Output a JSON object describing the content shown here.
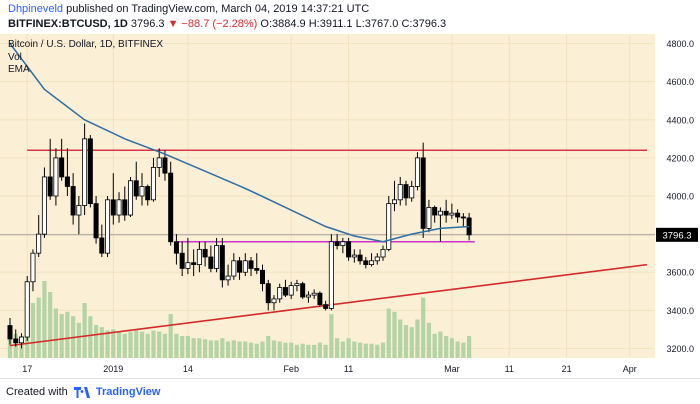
{
  "header": {
    "author": "Dhpineveld",
    "published_text": "published on TradingView.com, March 04, 2019 14:37:21 UTC",
    "symbol": "BITFINEX:BTCUSD, 1D",
    "last": "3796.3",
    "change": "▼ −88.7 (−2.28%)",
    "ohlc": "O:3884.9 H:3911.1 L:3767.0 C:3796.3"
  },
  "footer": {
    "credit_prefix": "Created with",
    "brand": "TradingView"
  },
  "colors": {
    "background": "#fbefd6",
    "grid": "#f1e2c0",
    "candle": "#000000",
    "ema": "#2e6ea6",
    "resistance": "#d9334a",
    "support": "#cc33cc",
    "trendline": "#d42a2a",
    "volume": "#a8cf9c"
  },
  "chart_data": {
    "type": "candlestick",
    "title": "Bitcoin / U.S. Dollar, 1D, BITFINEX",
    "legend": [
      "Vol",
      "EMA"
    ],
    "ylim": [
      3150,
      4850
    ],
    "y_ticks": [
      3200,
      3400,
      3600,
      3800,
      4000,
      4200,
      4400,
      4600,
      4800
    ],
    "y_tick_labels": [
      "3200.0",
      "3400.0",
      "3600.0",
      "3800.0",
      "4000.0",
      "4200.0",
      "4400.0",
      "4600.0",
      "4800.0"
    ],
    "last_price_label": "3796.3",
    "last_price": 3796.3,
    "x_range": [
      "2018-12-14",
      "2019-04-04"
    ],
    "x_ticks": [
      {
        "date": "2018-12-17",
        "label": "17"
      },
      {
        "date": "2019-01-01",
        "label": "2019"
      },
      {
        "date": "2019-01-14",
        "label": "14"
      },
      {
        "date": "2019-02-01",
        "label": "Feb"
      },
      {
        "date": "2019-02-11",
        "label": "11"
      },
      {
        "date": "2019-03-01",
        "label": "Mar"
      },
      {
        "date": "2019-03-11",
        "label": "11"
      },
      {
        "date": "2019-03-21",
        "label": "21"
      },
      {
        "date": "2019-04-01",
        "label": "Apr"
      }
    ],
    "candles": [
      {
        "date": "2018-12-14",
        "o": 3320,
        "h": 3360,
        "l": 3220,
        "c": 3250,
        "v": 0.3
      },
      {
        "date": "2018-12-15",
        "o": 3250,
        "h": 3300,
        "l": 3210,
        "c": 3230,
        "v": 0.22
      },
      {
        "date": "2018-12-16",
        "o": 3230,
        "h": 3280,
        "l": 3200,
        "c": 3260,
        "v": 0.2
      },
      {
        "date": "2018-12-17",
        "o": 3260,
        "h": 3580,
        "l": 3240,
        "c": 3550,
        "v": 0.45
      },
      {
        "date": "2018-12-18",
        "o": 3550,
        "h": 3720,
        "l": 3500,
        "c": 3700,
        "v": 0.5
      },
      {
        "date": "2018-12-19",
        "o": 3700,
        "h": 3900,
        "l": 3680,
        "c": 3800,
        "v": 0.55
      },
      {
        "date": "2018-12-20",
        "o": 3800,
        "h": 4150,
        "l": 3780,
        "c": 4100,
        "v": 0.7
      },
      {
        "date": "2018-12-21",
        "o": 4100,
        "h": 4300,
        "l": 3980,
        "c": 4000,
        "v": 0.6
      },
      {
        "date": "2018-12-22",
        "o": 4000,
        "h": 4250,
        "l": 3950,
        "c": 4200,
        "v": 0.45
      },
      {
        "date": "2018-12-23",
        "o": 4200,
        "h": 4300,
        "l": 4080,
        "c": 4100,
        "v": 0.4
      },
      {
        "date": "2018-12-24",
        "o": 4100,
        "h": 4250,
        "l": 4000,
        "c": 4050,
        "v": 0.42
      },
      {
        "date": "2018-12-25",
        "o": 4050,
        "h": 4120,
        "l": 3850,
        "c": 3900,
        "v": 0.38
      },
      {
        "date": "2018-12-26",
        "o": 3900,
        "h": 4000,
        "l": 3800,
        "c": 3950,
        "v": 0.32
      },
      {
        "date": "2018-12-27",
        "o": 3950,
        "h": 4380,
        "l": 3900,
        "c": 4300,
        "v": 0.5
      },
      {
        "date": "2018-12-28",
        "o": 4300,
        "h": 4320,
        "l": 3940,
        "c": 3960,
        "v": 0.38
      },
      {
        "date": "2018-12-29",
        "o": 3960,
        "h": 4000,
        "l": 3750,
        "c": 3780,
        "v": 0.3
      },
      {
        "date": "2018-12-30",
        "o": 3780,
        "h": 3850,
        "l": 3680,
        "c": 3700,
        "v": 0.28
      },
      {
        "date": "2018-12-31",
        "o": 3700,
        "h": 4000,
        "l": 3680,
        "c": 3980,
        "v": 0.25
      },
      {
        "date": "2019-01-01",
        "o": 3980,
        "h": 4120,
        "l": 3850,
        "c": 3900,
        "v": 0.26
      },
      {
        "date": "2019-01-02",
        "o": 3900,
        "h": 4020,
        "l": 3860,
        "c": 3980,
        "v": 0.24
      },
      {
        "date": "2019-01-03",
        "o": 3980,
        "h": 4050,
        "l": 3870,
        "c": 3900,
        "v": 0.22
      },
      {
        "date": "2019-01-04",
        "o": 3900,
        "h": 4100,
        "l": 3890,
        "c": 4080,
        "v": 0.24
      },
      {
        "date": "2019-01-05",
        "o": 4080,
        "h": 4180,
        "l": 3980,
        "c": 4000,
        "v": 0.26
      },
      {
        "date": "2019-01-06",
        "o": 4000,
        "h": 4120,
        "l": 3950,
        "c": 4050,
        "v": 0.24
      },
      {
        "date": "2019-01-07",
        "o": 4050,
        "h": 4060,
        "l": 3950,
        "c": 3980,
        "v": 0.22
      },
      {
        "date": "2019-01-08",
        "o": 3980,
        "h": 4200,
        "l": 3970,
        "c": 4150,
        "v": 0.25
      },
      {
        "date": "2019-01-09",
        "o": 4150,
        "h": 4250,
        "l": 4100,
        "c": 4200,
        "v": 0.24
      },
      {
        "date": "2019-01-10",
        "o": 4200,
        "h": 4240,
        "l": 4080,
        "c": 4120,
        "v": 0.22
      },
      {
        "date": "2019-01-11",
        "o": 4120,
        "h": 4180,
        "l": 3740,
        "c": 3760,
        "v": 0.4
      },
      {
        "date": "2019-01-12",
        "o": 3760,
        "h": 3800,
        "l": 3640,
        "c": 3700,
        "v": 0.22
      },
      {
        "date": "2019-01-13",
        "o": 3700,
        "h": 3760,
        "l": 3580,
        "c": 3620,
        "v": 0.2
      },
      {
        "date": "2019-01-14",
        "o": 3620,
        "h": 3780,
        "l": 3590,
        "c": 3650,
        "v": 0.2
      },
      {
        "date": "2019-01-15",
        "o": 3650,
        "h": 3720,
        "l": 3580,
        "c": 3640,
        "v": 0.18
      },
      {
        "date": "2019-01-16",
        "o": 3640,
        "h": 3760,
        "l": 3600,
        "c": 3720,
        "v": 0.18
      },
      {
        "date": "2019-01-17",
        "o": 3720,
        "h": 3760,
        "l": 3630,
        "c": 3680,
        "v": 0.17
      },
      {
        "date": "2019-01-18",
        "o": 3680,
        "h": 3740,
        "l": 3600,
        "c": 3620,
        "v": 0.16
      },
      {
        "date": "2019-01-19",
        "o": 3620,
        "h": 3780,
        "l": 3600,
        "c": 3740,
        "v": 0.16
      },
      {
        "date": "2019-01-20",
        "o": 3740,
        "h": 3780,
        "l": 3520,
        "c": 3560,
        "v": 0.18
      },
      {
        "date": "2019-01-21",
        "o": 3560,
        "h": 3640,
        "l": 3530,
        "c": 3580,
        "v": 0.15
      },
      {
        "date": "2019-01-22",
        "o": 3580,
        "h": 3700,
        "l": 3560,
        "c": 3660,
        "v": 0.16
      },
      {
        "date": "2019-01-23",
        "o": 3660,
        "h": 3680,
        "l": 3560,
        "c": 3600,
        "v": 0.15
      },
      {
        "date": "2019-01-24",
        "o": 3600,
        "h": 3700,
        "l": 3580,
        "c": 3660,
        "v": 0.15
      },
      {
        "date": "2019-01-25",
        "o": 3660,
        "h": 3680,
        "l": 3580,
        "c": 3620,
        "v": 0.14
      },
      {
        "date": "2019-01-26",
        "o": 3620,
        "h": 3700,
        "l": 3590,
        "c": 3610,
        "v": 0.13
      },
      {
        "date": "2019-01-27",
        "o": 3610,
        "h": 3640,
        "l": 3500,
        "c": 3540,
        "v": 0.15
      },
      {
        "date": "2019-01-28",
        "o": 3540,
        "h": 3560,
        "l": 3400,
        "c": 3440,
        "v": 0.2
      },
      {
        "date": "2019-01-29",
        "o": 3440,
        "h": 3480,
        "l": 3400,
        "c": 3460,
        "v": 0.16
      },
      {
        "date": "2019-01-30",
        "o": 3460,
        "h": 3540,
        "l": 3440,
        "c": 3520,
        "v": 0.15
      },
      {
        "date": "2019-01-31",
        "o": 3520,
        "h": 3560,
        "l": 3470,
        "c": 3480,
        "v": 0.14
      },
      {
        "date": "2019-02-01",
        "o": 3480,
        "h": 3550,
        "l": 3460,
        "c": 3530,
        "v": 0.14
      },
      {
        "date": "2019-02-02",
        "o": 3530,
        "h": 3560,
        "l": 3500,
        "c": 3540,
        "v": 0.12
      },
      {
        "date": "2019-02-03",
        "o": 3540,
        "h": 3550,
        "l": 3460,
        "c": 3470,
        "v": 0.13
      },
      {
        "date": "2019-02-04",
        "o": 3470,
        "h": 3500,
        "l": 3440,
        "c": 3480,
        "v": 0.12
      },
      {
        "date": "2019-02-05",
        "o": 3480,
        "h": 3510,
        "l": 3460,
        "c": 3490,
        "v": 0.12
      },
      {
        "date": "2019-02-06",
        "o": 3490,
        "h": 3500,
        "l": 3420,
        "c": 3430,
        "v": 0.14
      },
      {
        "date": "2019-02-07",
        "o": 3430,
        "h": 3450,
        "l": 3400,
        "c": 3410,
        "v": 0.12
      },
      {
        "date": "2019-02-08",
        "o": 3410,
        "h": 3800,
        "l": 3400,
        "c": 3760,
        "v": 0.4
      },
      {
        "date": "2019-02-09",
        "o": 3760,
        "h": 3800,
        "l": 3720,
        "c": 3740,
        "v": 0.18
      },
      {
        "date": "2019-02-10",
        "o": 3740,
        "h": 3780,
        "l": 3700,
        "c": 3760,
        "v": 0.15
      },
      {
        "date": "2019-02-11",
        "o": 3760,
        "h": 3780,
        "l": 3660,
        "c": 3680,
        "v": 0.18
      },
      {
        "date": "2019-02-12",
        "o": 3680,
        "h": 3720,
        "l": 3650,
        "c": 3690,
        "v": 0.15
      },
      {
        "date": "2019-02-13",
        "o": 3690,
        "h": 3720,
        "l": 3640,
        "c": 3660,
        "v": 0.14
      },
      {
        "date": "2019-02-14",
        "o": 3660,
        "h": 3680,
        "l": 3620,
        "c": 3640,
        "v": 0.13
      },
      {
        "date": "2019-02-15",
        "o": 3640,
        "h": 3700,
        "l": 3630,
        "c": 3660,
        "v": 0.13
      },
      {
        "date": "2019-02-16",
        "o": 3660,
        "h": 3700,
        "l": 3640,
        "c": 3680,
        "v": 0.12
      },
      {
        "date": "2019-02-17",
        "o": 3680,
        "h": 3740,
        "l": 3660,
        "c": 3720,
        "v": 0.14
      },
      {
        "date": "2019-02-18",
        "o": 3720,
        "h": 4000,
        "l": 3710,
        "c": 3960,
        "v": 0.45
      },
      {
        "date": "2019-02-19",
        "o": 3960,
        "h": 4080,
        "l": 3920,
        "c": 3980,
        "v": 0.42
      },
      {
        "date": "2019-02-20",
        "o": 3980,
        "h": 4100,
        "l": 3950,
        "c": 4060,
        "v": 0.35
      },
      {
        "date": "2019-02-21",
        "o": 4060,
        "h": 4080,
        "l": 3950,
        "c": 3990,
        "v": 0.3
      },
      {
        "date": "2019-02-22",
        "o": 3990,
        "h": 4080,
        "l": 3970,
        "c": 4050,
        "v": 0.28
      },
      {
        "date": "2019-02-23",
        "o": 4050,
        "h": 4230,
        "l": 4030,
        "c": 4200,
        "v": 0.35
      },
      {
        "date": "2019-02-24",
        "o": 4200,
        "h": 4280,
        "l": 3780,
        "c": 3830,
        "v": 0.55
      },
      {
        "date": "2019-02-25",
        "o": 3830,
        "h": 3980,
        "l": 3810,
        "c": 3940,
        "v": 0.32
      },
      {
        "date": "2019-02-26",
        "o": 3940,
        "h": 3950,
        "l": 3860,
        "c": 3900,
        "v": 0.22
      },
      {
        "date": "2019-02-27",
        "o": 3900,
        "h": 3940,
        "l": 3760,
        "c": 3920,
        "v": 0.24
      },
      {
        "date": "2019-02-28",
        "o": 3920,
        "h": 3980,
        "l": 3860,
        "c": 3900,
        "v": 0.2
      },
      {
        "date": "2019-03-01",
        "o": 3900,
        "h": 3960,
        "l": 3880,
        "c": 3910,
        "v": 0.18
      },
      {
        "date": "2019-03-02",
        "o": 3910,
        "h": 3930,
        "l": 3860,
        "c": 3890,
        "v": 0.15
      },
      {
        "date": "2019-03-03",
        "o": 3890,
        "h": 3910,
        "l": 3840,
        "c": 3885,
        "v": 0.14
      },
      {
        "date": "2019-03-04",
        "o": 3884.9,
        "h": 3911.1,
        "l": 3767.0,
        "c": 3796.3,
        "v": 0.2
      }
    ],
    "ema": [
      {
        "date": "2018-12-14",
        "y": 4800
      },
      {
        "date": "2018-12-20",
        "y": 4560
      },
      {
        "date": "2018-12-27",
        "y": 4400
      },
      {
        "date": "2019-01-03",
        "y": 4300
      },
      {
        "date": "2019-01-10",
        "y": 4220
      },
      {
        "date": "2019-01-17",
        "y": 4130
      },
      {
        "date": "2019-01-24",
        "y": 4040
      },
      {
        "date": "2019-01-31",
        "y": 3940
      },
      {
        "date": "2019-02-07",
        "y": 3840
      },
      {
        "date": "2019-02-12",
        "y": 3790
      },
      {
        "date": "2019-02-17",
        "y": 3760
      },
      {
        "date": "2019-02-22",
        "y": 3800
      },
      {
        "date": "2019-02-27",
        "y": 3830
      },
      {
        "date": "2019-03-04",
        "y": 3840
      }
    ],
    "lines": [
      {
        "name": "resistance",
        "from": {
          "date": "2018-12-17",
          "y": 4240
        },
        "to": {
          "date": "2019-04-04",
          "y": 4240
        }
      },
      {
        "name": "support",
        "from": {
          "date": "2019-01-12",
          "y": 3760
        },
        "to": {
          "date": "2019-03-05",
          "y": 3760
        }
      },
      {
        "name": "trendline",
        "from": {
          "date": "2018-12-14",
          "y": 3215
        },
        "to": {
          "date": "2019-04-04",
          "y": 3640
        }
      }
    ]
  }
}
